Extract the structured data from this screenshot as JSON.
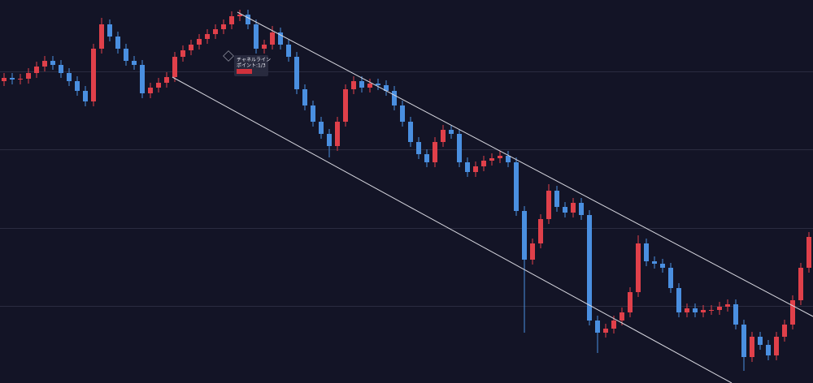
{
  "chart_data": {
    "type": "candlestick",
    "up_color": "#e0404a",
    "down_color": "#4a8fe0",
    "grid": true,
    "xlim": [
      -0.5,
      99.5
    ],
    "ylim": [
      0,
      472
    ],
    "yticks": [
      95,
      191,
      288,
      384
    ],
    "open": [
      372,
      376,
      374,
      375,
      382,
      390,
      397,
      392,
      382,
      372,
      360,
      347,
      412,
      442,
      427,
      412,
      397,
      392,
      357,
      364,
      370,
      377,
      402,
      410,
      417,
      424,
      430,
      436,
      442,
      452,
      454,
      442,
      412,
      417,
      432,
      417,
      402,
      362,
      342,
      322,
      307,
      292,
      322,
      362,
      372,
      364,
      369,
      367,
      360,
      342,
      322,
      297,
      282,
      272,
      297,
      312,
      307,
      272,
      260,
      267,
      274,
      277,
      280,
      272,
      212,
      152,
      172,
      202,
      237,
      217,
      210,
      222,
      207,
      77,
      62,
      67,
      77,
      87,
      112,
      172,
      150,
      147,
      142,
      117,
      87,
      92,
      87,
      90,
      90,
      94,
      97,
      72,
      32,
      57,
      47,
      34,
      57,
      72,
      102,
      142
    ],
    "high": [
      382,
      382,
      381,
      388,
      396,
      403,
      403,
      398,
      388,
      378,
      366,
      418,
      450,
      448,
      433,
      418,
      403,
      398,
      370,
      376,
      383,
      408,
      416,
      423,
      430,
      436,
      442,
      448,
      458,
      460,
      460,
      448,
      423,
      440,
      438,
      423,
      408,
      368,
      348,
      328,
      313,
      328,
      368,
      378,
      378,
      375,
      375,
      373,
      366,
      348,
      328,
      303,
      288,
      303,
      318,
      318,
      313,
      278,
      273,
      280,
      283,
      286,
      286,
      278,
      218,
      178,
      208,
      245,
      243,
      223,
      228,
      228,
      213,
      83,
      73,
      83,
      93,
      118,
      182,
      178,
      156,
      153,
      148,
      123,
      98,
      98,
      96,
      96,
      100,
      103,
      103,
      78,
      63,
      63,
      53,
      63,
      78,
      108,
      148,
      186
    ],
    "low": [
      366,
      368,
      368,
      369,
      376,
      384,
      386,
      376,
      366,
      354,
      341,
      341,
      406,
      421,
      406,
      391,
      386,
      351,
      351,
      358,
      364,
      371,
      396,
      404,
      411,
      418,
      424,
      430,
      436,
      446,
      436,
      406,
      406,
      411,
      411,
      396,
      356,
      336,
      316,
      301,
      278,
      286,
      316,
      356,
      358,
      358,
      361,
      354,
      336,
      316,
      291,
      276,
      266,
      266,
      291,
      301,
      266,
      254,
      254,
      261,
      268,
      271,
      266,
      206,
      62,
      146,
      166,
      196,
      211,
      204,
      204,
      201,
      71,
      37,
      56,
      61,
      71,
      81,
      106,
      144,
      141,
      136,
      111,
      81,
      81,
      81,
      81,
      84,
      84,
      88,
      66,
      15,
      26,
      41,
      28,
      28,
      51,
      66,
      96,
      136
    ],
    "close": [
      376,
      374,
      375,
      382,
      390,
      397,
      392,
      382,
      372,
      360,
      347,
      412,
      442,
      427,
      412,
      397,
      392,
      357,
      364,
      370,
      377,
      402,
      410,
      417,
      424,
      430,
      436,
      442,
      452,
      454,
      442,
      412,
      417,
      432,
      417,
      402,
      362,
      342,
      322,
      307,
      292,
      322,
      362,
      372,
      364,
      369,
      367,
      360,
      342,
      322,
      297,
      282,
      272,
      297,
      312,
      307,
      272,
      260,
      267,
      274,
      277,
      280,
      272,
      212,
      152,
      172,
      202,
      237,
      217,
      210,
      222,
      207,
      77,
      62,
      67,
      77,
      87,
      112,
      172,
      150,
      147,
      142,
      117,
      87,
      92,
      87,
      90,
      90,
      94,
      97,
      72,
      32,
      57,
      47,
      34,
      57,
      72,
      102,
      142,
      180
    ],
    "channel": {
      "upper": {
        "x": [
          28.7,
          99.5
        ],
        "y": [
          457,
          82
        ]
      },
      "lower": {
        "x": [
          20.7,
          89.5
        ],
        "y": [
          377,
          0
        ]
      }
    },
    "tooltip": {
      "title": "チャネルライン",
      "point": "ポイント:1/3"
    }
  }
}
